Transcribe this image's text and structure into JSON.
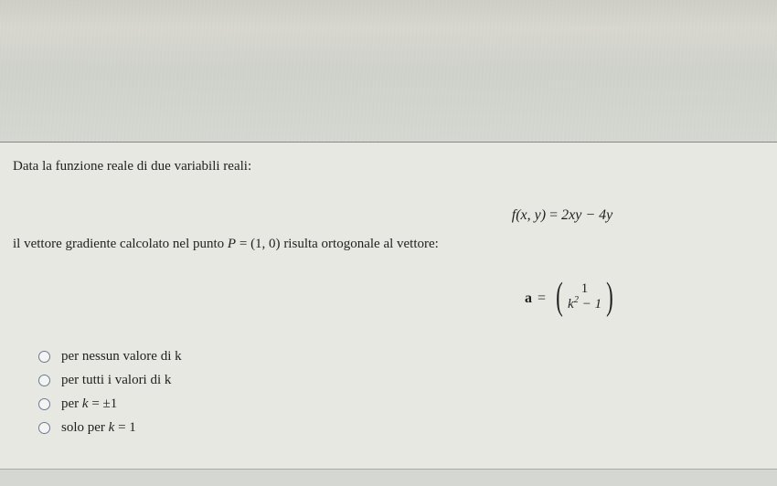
{
  "background_color": "#d5d7d2",
  "panel_background": "#e7e8e2",
  "border_color": "#888888",
  "text_color": "#1f1f1f",
  "font_family": "Times New Roman",
  "font_size_pt": 12,
  "question": {
    "line1": "Data la funzione reale di due variabili reali:",
    "function_lhs": "f(x, y)",
    "function_rhs": "2xy − 4y",
    "line2_pre": "il vettore gradiente calcolato nel punto ",
    "point_label": "P",
    "point_value": "(1, 0)",
    "line2_post": " risulta ortogonale al vettore:",
    "vector_label": "a",
    "vector_top": "1",
    "vector_bottom_k": "k",
    "vector_bottom_exp": "2",
    "vector_bottom_tail": " − 1"
  },
  "options": [
    {
      "label": "per nessun valore di k"
    },
    {
      "label": "per tutti i valori di k"
    },
    {
      "label_pre": "per ",
      "ital": "k",
      "label_post": " = ±1"
    },
    {
      "label_pre": "solo per ",
      "ital": "k",
      "label_post": " = 1"
    }
  ]
}
